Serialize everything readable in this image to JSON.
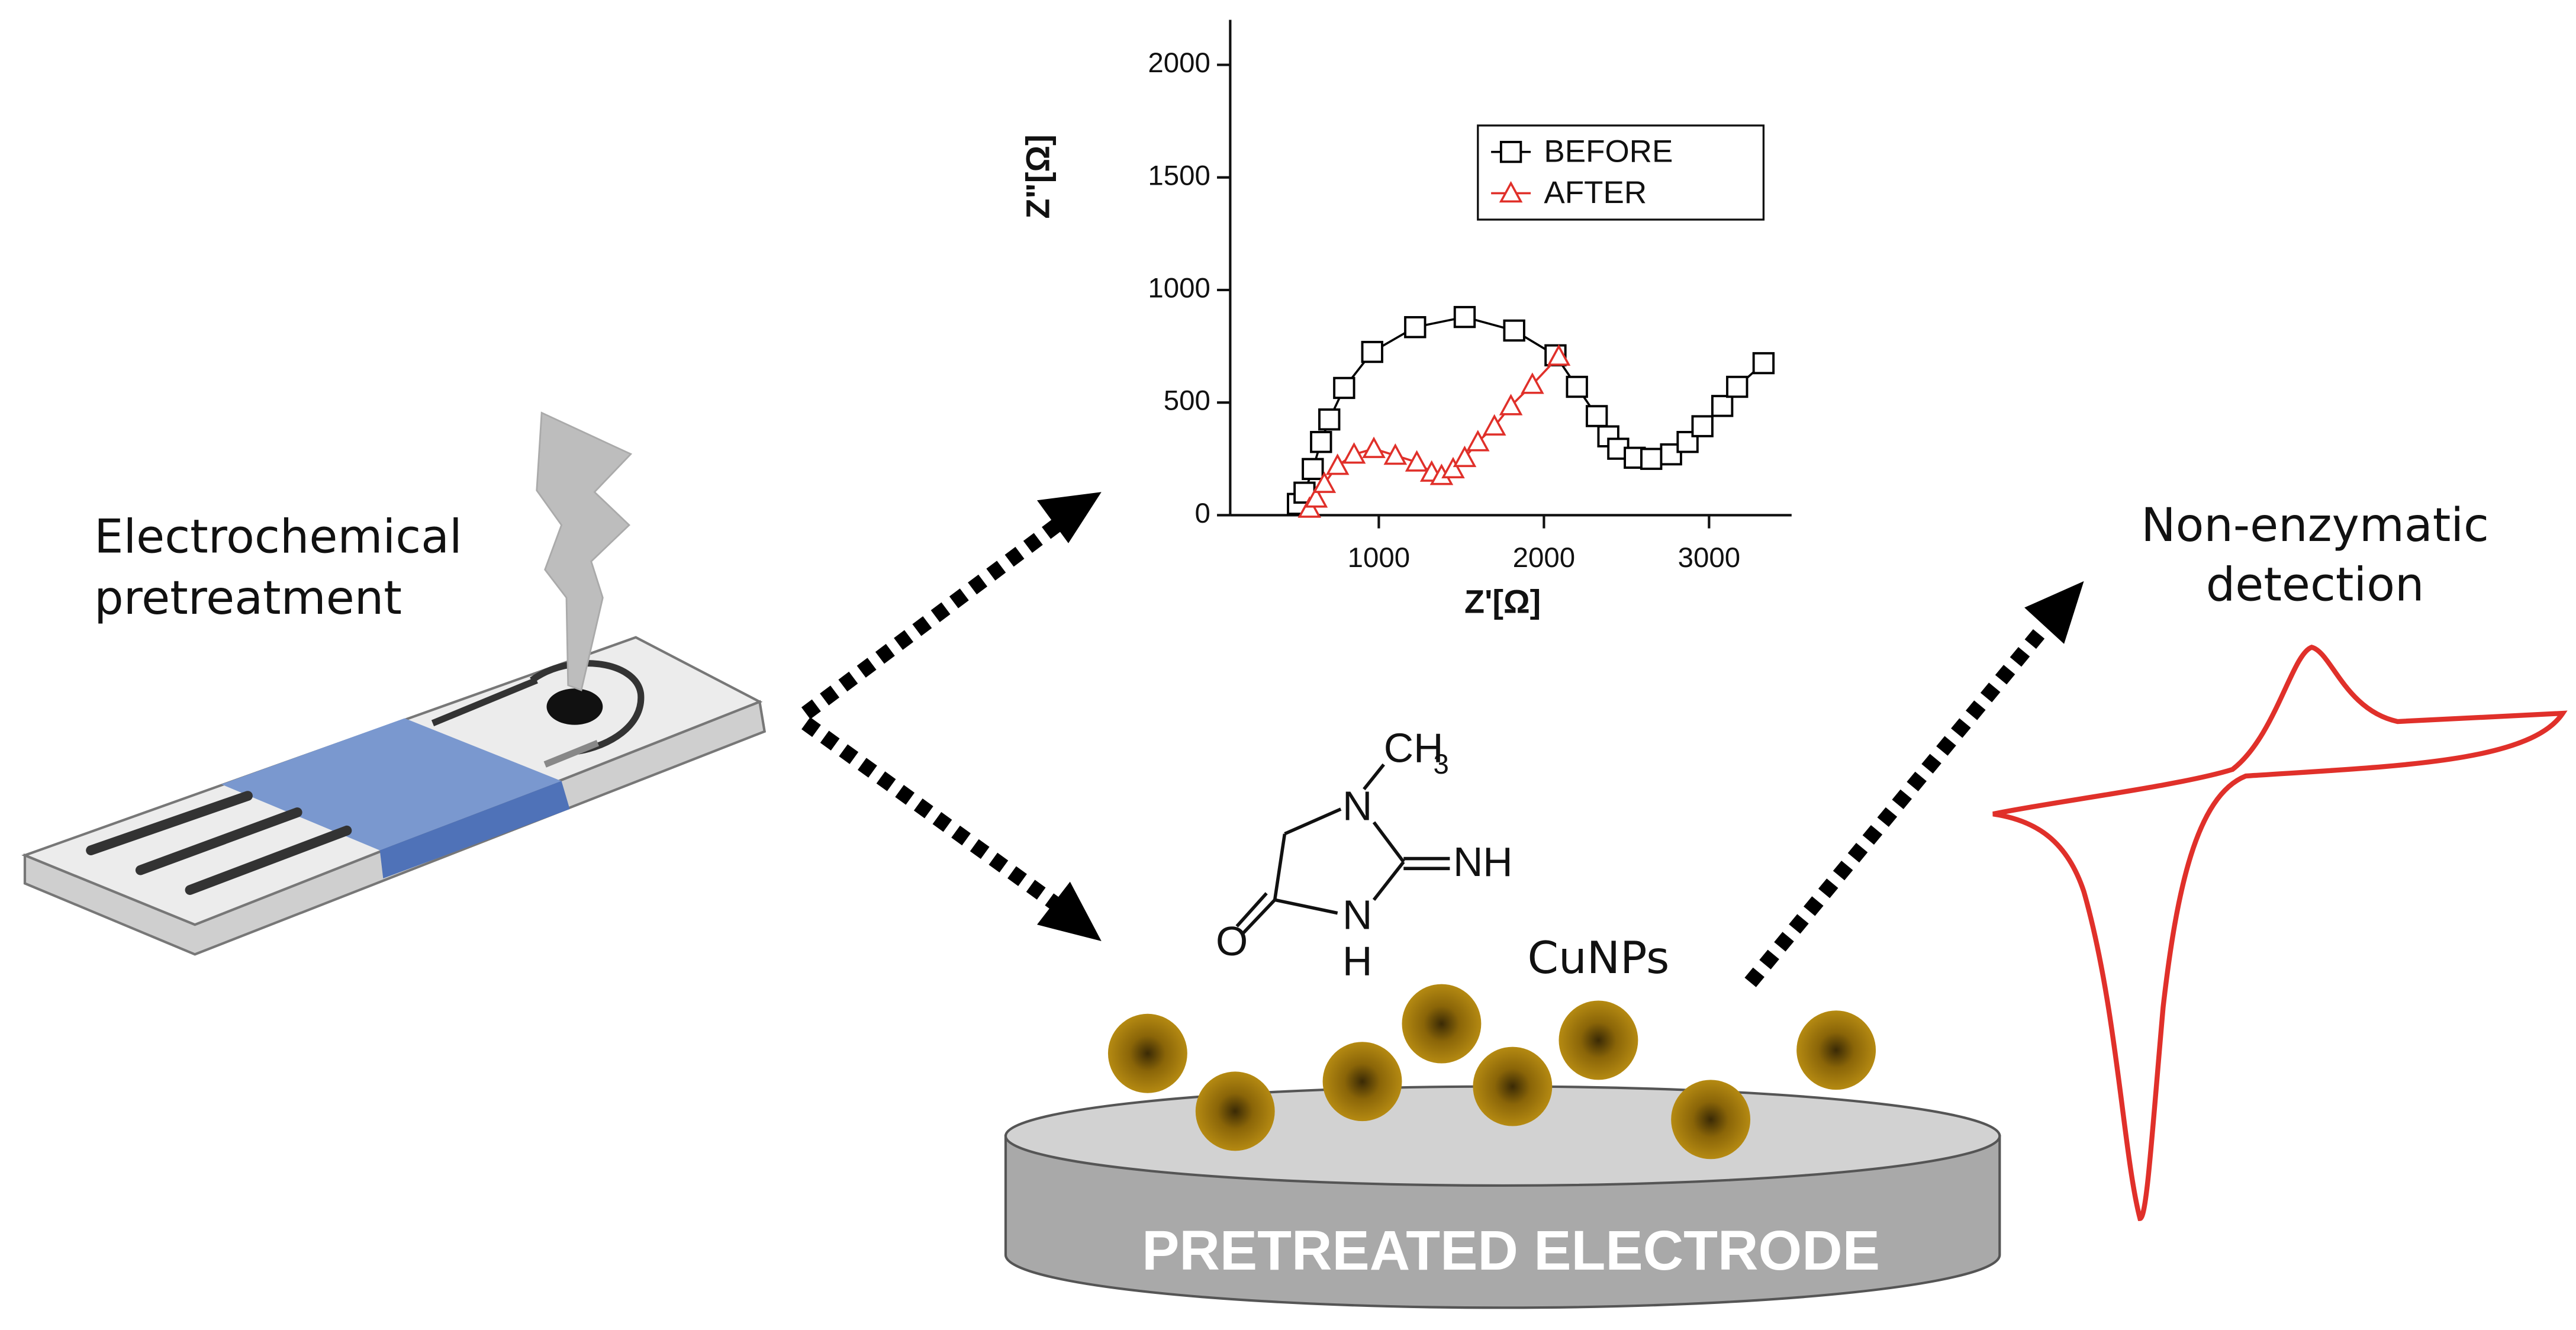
{
  "labels": {
    "pretreatment": [
      "Electrochemical",
      "pretreatment"
    ],
    "detection": [
      "Non-enzymatic",
      "detection"
    ],
    "nanoparticles": "CuNPs",
    "electrode": "PRETREATED ELECTRODE"
  },
  "molecule": {
    "methyl": "CH",
    "methyl_subscript": "3",
    "ring_n1": "N",
    "imine": "NH",
    "ring_n3": "N",
    "ring_h3": "H",
    "oxygen": "O"
  },
  "chart_data": {
    "type": "scatter",
    "xlabel": "Z'[Ω]",
    "ylabel": "Z\"[Ω]",
    "xlim": [
      100,
      3500
    ],
    "ylim": [
      0,
      2200
    ],
    "xticks": [
      1000,
      2000,
      3000
    ],
    "yticks": [
      0,
      500,
      1000,
      1500,
      2000
    ],
    "legend": "upper right",
    "series": [
      {
        "name": "BEFORE",
        "color": "#000000",
        "marker": "square",
        "x": [
          510,
          550,
          600,
          650,
          700,
          790,
          960,
          1220,
          1520,
          1820,
          2070,
          2200,
          2320,
          2390,
          2450,
          2550,
          2650,
          2770,
          2870,
          2960,
          3080,
          3170,
          3330
        ],
        "values": [
          50,
          100,
          205,
          325,
          425,
          565,
          725,
          835,
          880,
          820,
          710,
          570,
          440,
          350,
          295,
          255,
          250,
          270,
          325,
          395,
          485,
          570,
          675
        ]
      },
      {
        "name": "AFTER",
        "color": "#e0302a",
        "marker": "triangle",
        "x": [
          580,
          620,
          670,
          750,
          850,
          970,
          1100,
          1230,
          1320,
          1380,
          1450,
          1520,
          1600,
          1700,
          1800,
          1930,
          2090
        ],
        "values": [
          30,
          75,
          140,
          220,
          270,
          295,
          265,
          235,
          190,
          175,
          205,
          255,
          325,
          395,
          485,
          580,
          705
        ]
      }
    ]
  }
}
